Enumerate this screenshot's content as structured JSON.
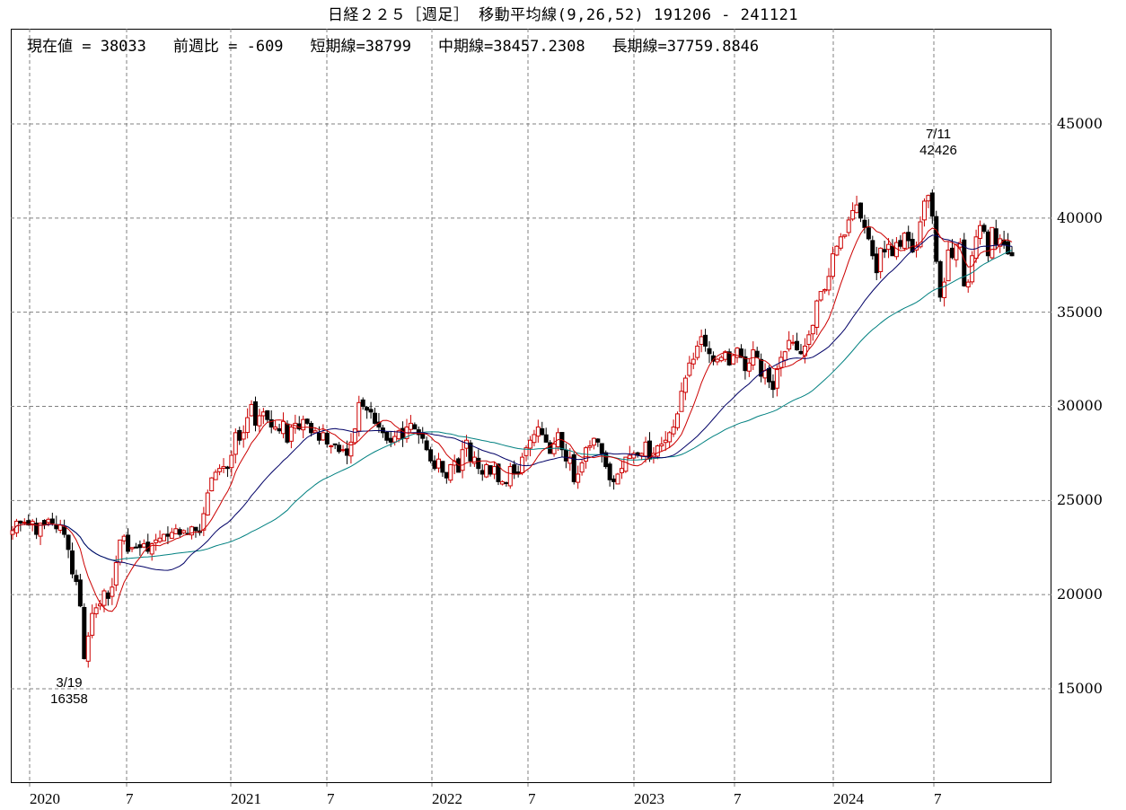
{
  "title": "日経２２５［週足］ 移動平均線(9,26,52)  191206 - 241121",
  "info": {
    "current": "現在値 = 38033",
    "change": "前週比 = -609",
    "short": "短期線=38799",
    "mid": "中期線=38457.2308",
    "long": "長期線=37759.8846"
  },
  "annotations": {
    "low_date": "3/19",
    "low_value": "16358",
    "high_date": "7/11",
    "high_value": "42426"
  },
  "colors": {
    "up": "#cc0000",
    "down": "#000000",
    "short_ma": "#cc0000",
    "mid_ma": "#000066",
    "long_ma": "#008080",
    "grid": "#808080"
  },
  "y_axis": [
    "45000",
    "40000",
    "35000",
    "30000",
    "25000",
    "20000",
    "15000"
  ],
  "x_axis": [
    "2020",
    "7",
    "2021",
    "7",
    "2022",
    "7",
    "2023",
    "7",
    "2024",
    "7"
  ],
  "chart_data": {
    "type": "candlestick",
    "title": "日経２２５［週足］ 移動平均線(9,26,52) 191206 - 241121",
    "xlabel": "",
    "ylabel": "",
    "ylim": [
      10000,
      50000
    ],
    "grid": true,
    "legend": [
      "短期線(9)",
      "中期線(26)",
      "長期線(52)"
    ],
    "x_ticks": [
      "2020",
      "7",
      "2021",
      "7",
      "2022",
      "7",
      "2023",
      "7",
      "2024",
      "7"
    ],
    "y_ticks": [
      15000,
      20000,
      25000,
      30000,
      35000,
      40000,
      45000
    ],
    "closes": [
      23400,
      23900,
      23800,
      23850,
      23700,
      23900,
      23200,
      23800,
      23700,
      24000,
      23800,
      23500,
      23700,
      23200,
      22400,
      21100,
      20700,
      19400,
      16600,
      17800,
      19000,
      19300,
      19500,
      20200,
      19800,
      20400,
      21700,
      22900,
      23100,
      22300,
      22500,
      22500,
      22500,
      22700,
      22300,
      22700,
      22900,
      23000,
      23200,
      23100,
      23300,
      23500,
      23200,
      23400,
      23200,
      23600,
      23400,
      23300,
      24300,
      25400,
      26200,
      26500,
      26700,
      26800,
      26700,
      27400,
      28600,
      28200,
      28600,
      29400,
      30100,
      29000,
      29500,
      29700,
      29300,
      28900,
      28900,
      28700,
      29200,
      28100,
      28900,
      29100,
      28800,
      29300,
      29100,
      28600,
      28700,
      28200,
      28600,
      28000,
      27900,
      28000,
      27600,
      27700,
      27400,
      28100,
      28800,
      30200,
      30000,
      29800,
      29700,
      29100,
      28900,
      28600,
      28200,
      28100,
      28400,
      28700,
      28300,
      28900,
      29100,
      28800,
      28500,
      28300,
      27700,
      27100,
      26700,
      27200,
      26500,
      26200,
      26900,
      27100,
      26500,
      27700,
      28200,
      27100,
      27300,
      26700,
      26400,
      26900,
      26400,
      26800,
      26000,
      26000,
      25900,
      26800,
      26400,
      26400,
      27300,
      27800,
      28200,
      28500,
      28900,
      28500,
      28100,
      27500,
      28000,
      28600,
      27700,
      27100,
      27300,
      26000,
      26400,
      27000,
      27800,
      27900,
      28300,
      28100,
      27500,
      26800,
      26100,
      26000,
      26400,
      26700,
      27300,
      27400,
      27500,
      27400,
      27500,
      28100,
      27200,
      27500,
      27900,
      28000,
      28200,
      28600,
      28900,
      29600,
      30800,
      31500,
      32300,
      32500,
      33200,
      33700,
      33200,
      32800,
      32400,
      32500,
      32600,
      32900,
      32200,
      32700,
      33100,
      32600,
      31900,
      32300,
      33000,
      32600,
      31600,
      31900,
      31300,
      30900,
      32000,
      32600,
      32900,
      33500,
      33400,
      33000,
      32800,
      33200,
      33800,
      34300,
      35600,
      36100,
      36200,
      36900,
      38100,
      38500,
      39000,
      39100,
      39900,
      40400,
      40700,
      40000,
      39500,
      38900,
      38000,
      37100,
      38400,
      38200,
      38600,
      38000,
      38700,
      38500,
      39200,
      38800,
      38200,
      38500,
      39800,
      40900,
      41200,
      40100,
      37700,
      35800,
      36600,
      38300,
      37900,
      38600,
      38700,
      36400,
      36600,
      38000,
      39000,
      39600,
      39300,
      38000,
      39500,
      38600,
      38900,
      38600,
      38100,
      38000
    ],
    "series": [
      {
        "name": "短期線",
        "period": 9,
        "last": 38799
      },
      {
        "name": "中期線",
        "period": 26,
        "last": 38457.2308
      },
      {
        "name": "長期線",
        "period": 52,
        "last": 37759.8846
      }
    ],
    "annotations": [
      {
        "label": "3/19",
        "value": 16358
      },
      {
        "label": "7/11",
        "value": 42426
      }
    ]
  }
}
